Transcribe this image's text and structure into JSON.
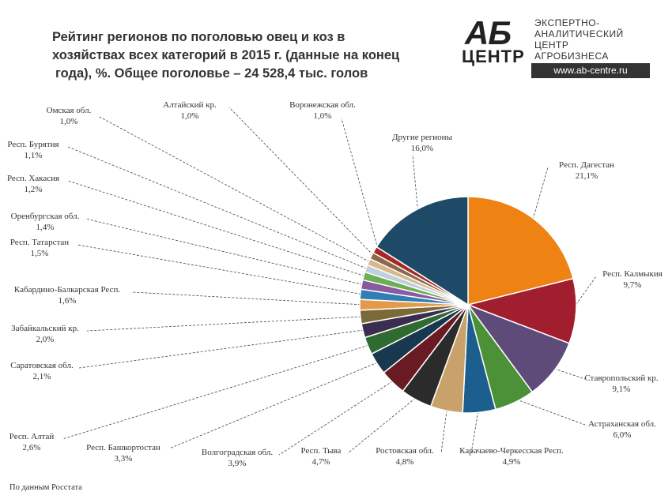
{
  "title": {
    "line1": "Рейтинг регионов по поголовью овец и коз в",
    "line2": "хозяйствах всех категорий в 2015 г. (данные на конец",
    "line3": "года), %. Общее поголовье – 24 528,4 тыс. голов"
  },
  "logo": {
    "mark": "АБ",
    "mark_sub": "ЦЕНТР",
    "lines": [
      "ЭКСПЕРТНО-",
      "АНАЛИТИЧЕСКИЙ",
      "ЦЕНТР",
      "АГРОБИЗНЕСА"
    ],
    "url": "www.ab-centre.ru"
  },
  "footnote": "По данным Росстата",
  "chart_data": {
    "type": "pie",
    "title": "Рейтинг регионов по поголовью овец и коз в хозяйствах всех категорий в 2015 г. (данные на конец года), %. Общее поголовье – 24 528,4 тыс. голов",
    "unit": "%",
    "start": "12 o'clock, clockwise",
    "slices": [
      {
        "name": "Респ. Дагестан",
        "value": 21.1,
        "label": "21,1%",
        "color": "#ee8213"
      },
      {
        "name": "Респ. Калмыкия",
        "value": 9.7,
        "label": "9,7%",
        "color": "#a01e2d"
      },
      {
        "name": "Ставропольский кр.",
        "value": 9.1,
        "label": "9,1%",
        "color": "#5e4b7a"
      },
      {
        "name": "Астраханская обл.",
        "value": 6.0,
        "label": "6,0%",
        "color": "#4c9138"
      },
      {
        "name": "Карачаево-Черкесская Респ.",
        "value": 4.9,
        "label": "4,9%",
        "color": "#1c5e8d"
      },
      {
        "name": "Ростовская обл.",
        "value": 4.8,
        "label": "4,8%",
        "color": "#c8a26a"
      },
      {
        "name": "Респ. Тыва",
        "value": 4.7,
        "label": "4,7%",
        "color": "#2b2b2b"
      },
      {
        "name": "Волгоградская обл.",
        "value": 3.9,
        "label": "3,9%",
        "color": "#6a1a22"
      },
      {
        "name": "Респ. Башкортостан",
        "value": 3.3,
        "label": "3,3%",
        "color": "#17384f"
      },
      {
        "name": "Респ. Алтай",
        "value": 2.6,
        "label": "2,6%",
        "color": "#2f6b30"
      },
      {
        "name": "Саратовская обл.",
        "value": 2.1,
        "label": "2,1%",
        "color": "#3a2d4f"
      },
      {
        "name": "Забайкальский кр.",
        "value": 2.0,
        "label": "2,0%",
        "color": "#7a6a3a"
      },
      {
        "name": "Кабардино-Балкарская Респ.",
        "value": 1.6,
        "label": "1,6%",
        "color": "#e39a4a"
      },
      {
        "name": "Респ. Татарстан",
        "value": 1.5,
        "label": "1,5%",
        "color": "#2f7fb5"
      },
      {
        "name": "Оренбургская обл.",
        "value": 1.4,
        "label": "1,4%",
        "color": "#8a5aa0"
      },
      {
        "name": "Респ. Хакасия",
        "value": 1.2,
        "label": "1,2%",
        "color": "#6cae52"
      },
      {
        "name": "Респ. Бурятия",
        "value": 1.1,
        "label": "1,1%",
        "color": "#bcd0e0"
      },
      {
        "name": "Омская обл.",
        "value": 1.0,
        "label": "1,0%",
        "color": "#d8b88a"
      },
      {
        "name": "Алтайский кр.",
        "value": 1.0,
        "label": "1,0%",
        "color": "#8a6a4a"
      },
      {
        "name": "Воронежская обл.",
        "value": 1.0,
        "label": "1,0%",
        "color": "#a82828"
      },
      {
        "name": "Другие регионы",
        "value": 16.0,
        "label": "16,0%",
        "color": "#1e4a68"
      }
    ]
  }
}
